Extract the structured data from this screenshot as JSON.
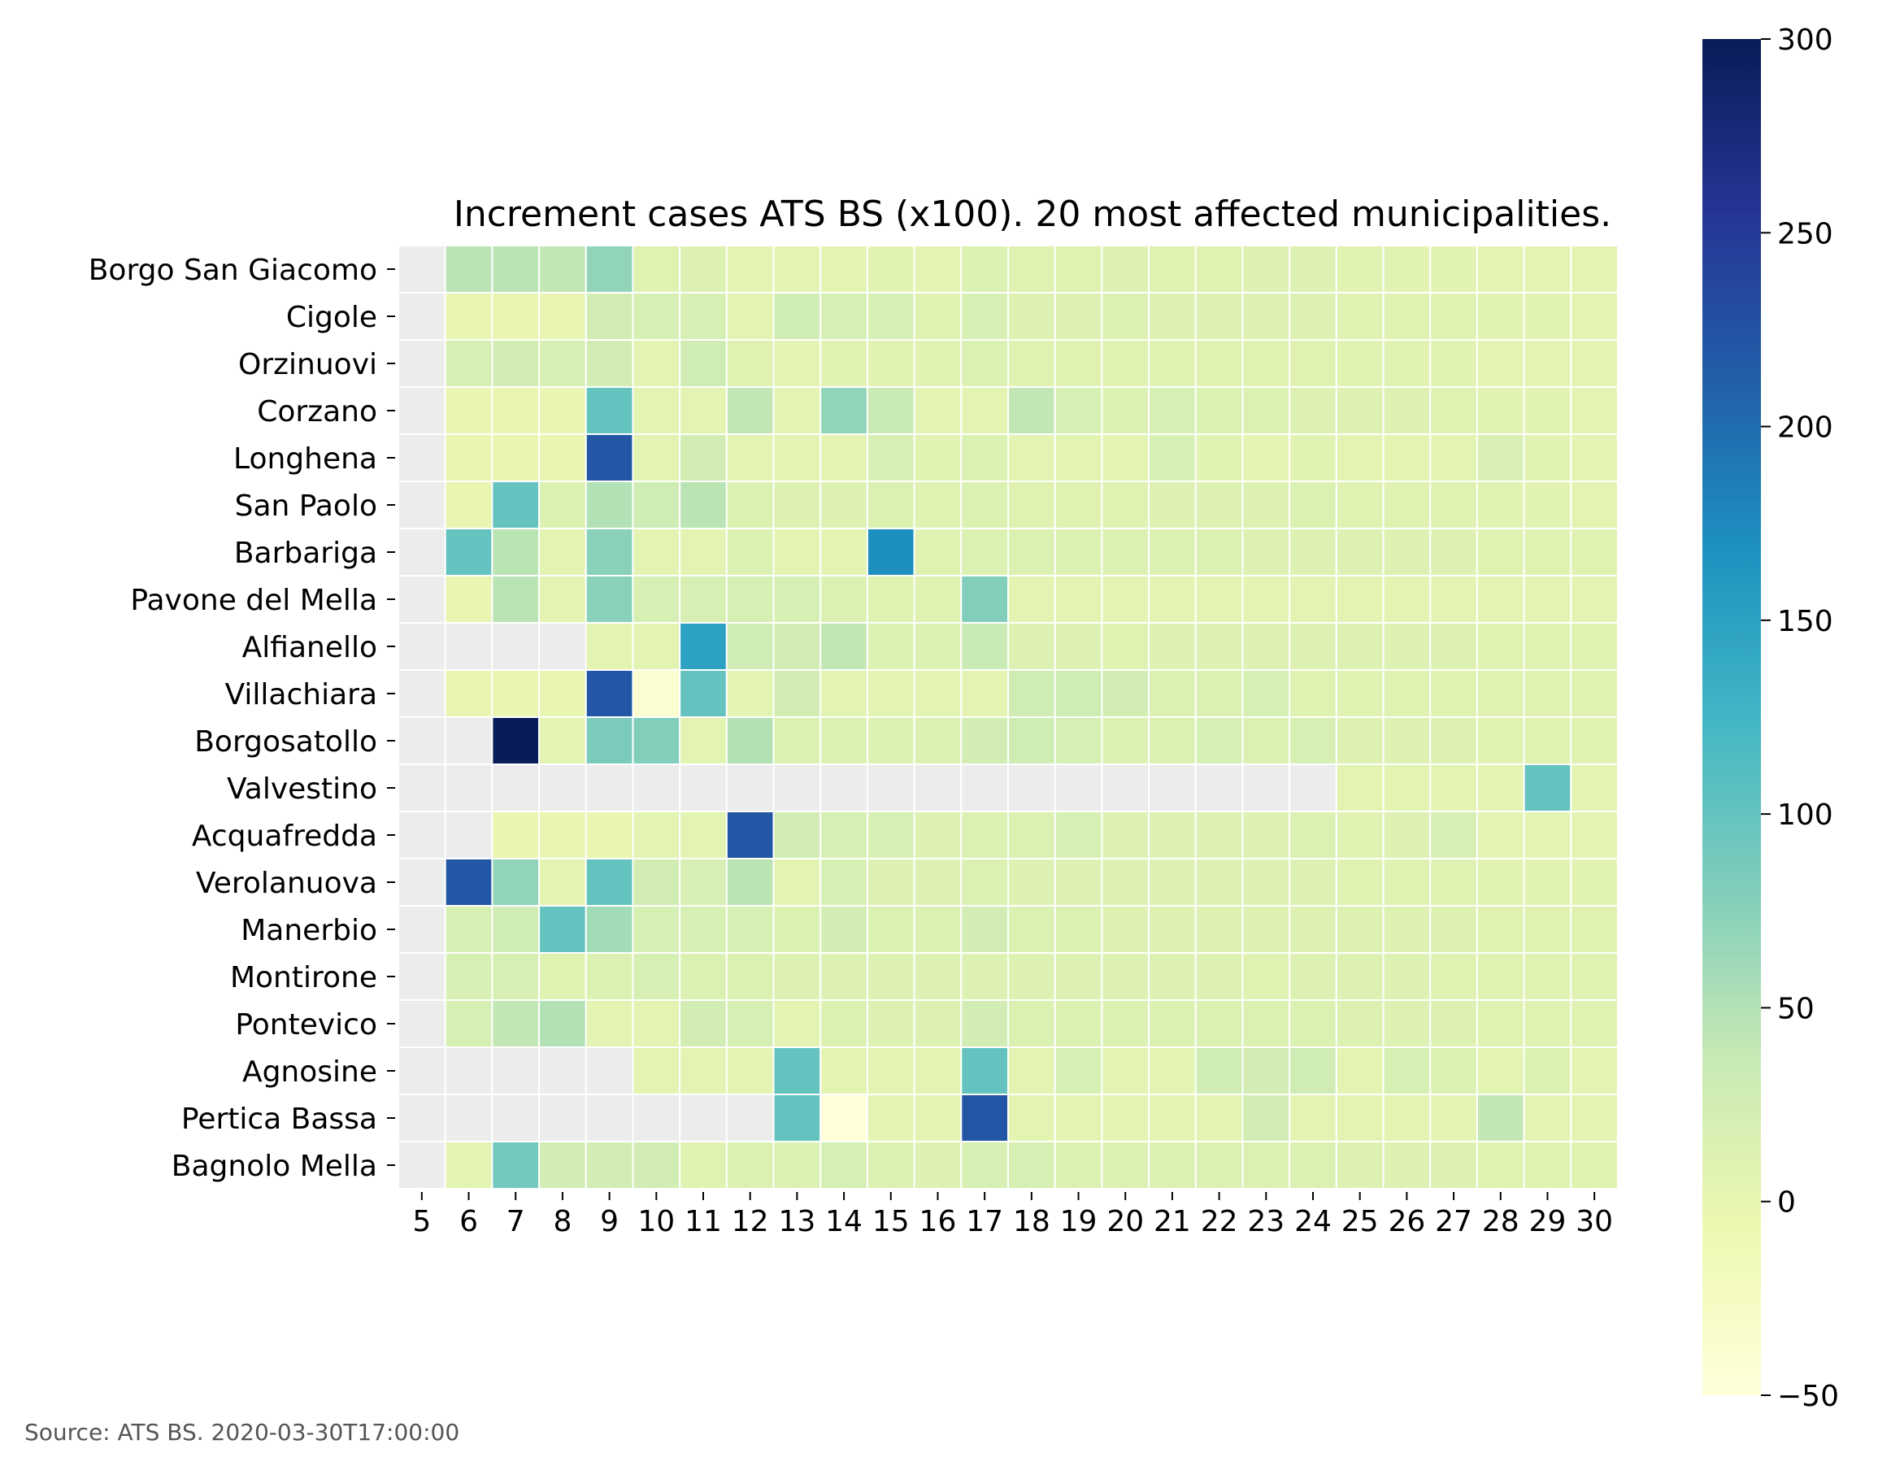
{
  "chart_data": {
    "type": "heatmap",
    "title": "Increment cases ATS BS (x100). 20 most affected municipalities.",
    "x": [
      "5",
      "6",
      "7",
      "8",
      "9",
      "10",
      "11",
      "12",
      "13",
      "14",
      "15",
      "16",
      "17",
      "18",
      "19",
      "20",
      "21",
      "22",
      "23",
      "24",
      "25",
      "26",
      "27",
      "28",
      "29",
      "30"
    ],
    "y": [
      "Borgo San Giacomo",
      "Cigole",
      "Orzinuovi",
      "Corzano",
      "Longhena",
      "San Paolo",
      "Barbariga",
      "Pavone del Mella",
      "Alfianello",
      "Villachiara",
      "Borgosatollo",
      "Valvestino",
      "Acquafredda",
      "Verolanuova",
      "Manerbio",
      "Montirone",
      "Pontevico",
      "Agnosine",
      "Pertica Bassa",
      "Bagnolo Mella"
    ],
    "values": [
      [
        null,
        45,
        45,
        40,
        70,
        10,
        12,
        5,
        5,
        5,
        8,
        5,
        15,
        10,
        10,
        12,
        10,
        10,
        12,
        12,
        8,
        8,
        8,
        5,
        5,
        5
      ],
      [
        null,
        0,
        0,
        0,
        25,
        20,
        20,
        5,
        28,
        20,
        20,
        10,
        20,
        12,
        12,
        15,
        12,
        12,
        12,
        12,
        10,
        10,
        10,
        8,
        8,
        5
      ],
      [
        null,
        20,
        25,
        20,
        25,
        5,
        30,
        10,
        5,
        8,
        8,
        8,
        15,
        10,
        10,
        10,
        10,
        10,
        10,
        10,
        8,
        8,
        8,
        5,
        5,
        5
      ],
      [
        null,
        0,
        0,
        0,
        100,
        5,
        5,
        40,
        5,
        70,
        35,
        5,
        5,
        40,
        20,
        15,
        20,
        15,
        15,
        12,
        12,
        12,
        10,
        8,
        8,
        5
      ],
      [
        null,
        0,
        0,
        0,
        220,
        5,
        25,
        5,
        5,
        5,
        20,
        8,
        15,
        5,
        5,
        5,
        20,
        8,
        5,
        8,
        5,
        5,
        5,
        18,
        8,
        5
      ],
      [
        null,
        0,
        100,
        15,
        50,
        30,
        45,
        15,
        12,
        12,
        15,
        10,
        15,
        10,
        10,
        10,
        12,
        12,
        12,
        15,
        10,
        10,
        10,
        8,
        8,
        5
      ],
      [
        null,
        100,
        45,
        5,
        75,
        5,
        5,
        15,
        5,
        5,
        170,
        10,
        15,
        15,
        15,
        15,
        15,
        15,
        12,
        12,
        12,
        12,
        12,
        10,
        10,
        10
      ],
      [
        null,
        0,
        45,
        5,
        75,
        20,
        20,
        20,
        20,
        15,
        10,
        10,
        80,
        5,
        5,
        5,
        5,
        5,
        5,
        5,
        5,
        5,
        5,
        5,
        5,
        5
      ],
      [
        null,
        null,
        null,
        null,
        5,
        5,
        150,
        30,
        25,
        40,
        15,
        15,
        35,
        12,
        12,
        10,
        12,
        12,
        12,
        12,
        12,
        12,
        12,
        10,
        10,
        10
      ],
      [
        null,
        0,
        0,
        0,
        220,
        -40,
        100,
        5,
        25,
        5,
        5,
        5,
        5,
        30,
        30,
        25,
        15,
        15,
        20,
        10,
        10,
        10,
        10,
        10,
        10,
        10
      ],
      [
        null,
        null,
        300,
        5,
        85,
        80,
        5,
        50,
        15,
        15,
        15,
        15,
        25,
        30,
        20,
        15,
        15,
        20,
        15,
        20,
        12,
        12,
        12,
        10,
        10,
        10
      ],
      [
        null,
        null,
        null,
        null,
        null,
        null,
        null,
        null,
        null,
        null,
        null,
        null,
        null,
        null,
        null,
        null,
        null,
        null,
        null,
        null,
        5,
        5,
        5,
        5,
        100,
        5
      ],
      [
        null,
        null,
        0,
        0,
        0,
        5,
        5,
        220,
        25,
        20,
        20,
        12,
        15,
        15,
        20,
        12,
        12,
        12,
        12,
        15,
        10,
        12,
        20,
        5,
        5,
        5
      ],
      [
        null,
        220,
        70,
        5,
        100,
        25,
        20,
        45,
        5,
        20,
        12,
        12,
        15,
        12,
        12,
        12,
        12,
        12,
        12,
        12,
        10,
        10,
        10,
        8,
        8,
        8
      ],
      [
        null,
        20,
        30,
        100,
        60,
        20,
        20,
        20,
        15,
        25,
        15,
        15,
        25,
        15,
        15,
        12,
        12,
        12,
        12,
        12,
        12,
        12,
        12,
        10,
        10,
        10
      ],
      [
        null,
        20,
        20,
        10,
        15,
        20,
        15,
        15,
        12,
        12,
        12,
        12,
        12,
        12,
        12,
        12,
        12,
        12,
        10,
        12,
        12,
        12,
        10,
        10,
        10,
        10
      ],
      [
        null,
        20,
        40,
        50,
        5,
        5,
        25,
        20,
        5,
        15,
        12,
        12,
        25,
        15,
        15,
        15,
        15,
        15,
        15,
        15,
        12,
        12,
        12,
        10,
        10,
        10
      ],
      [
        null,
        null,
        null,
        null,
        null,
        5,
        5,
        5,
        100,
        5,
        5,
        5,
        100,
        5,
        20,
        5,
        5,
        30,
        25,
        30,
        5,
        20,
        15,
        5,
        15,
        5
      ],
      [
        null,
        null,
        null,
        null,
        null,
        null,
        null,
        null,
        100,
        -50,
        5,
        5,
        220,
        5,
        5,
        5,
        5,
        5,
        25,
        5,
        5,
        5,
        5,
        40,
        5,
        5
      ],
      [
        null,
        5,
        90,
        25,
        25,
        25,
        10,
        15,
        15,
        20,
        15,
        12,
        20,
        20,
        15,
        15,
        15,
        15,
        15,
        15,
        12,
        12,
        12,
        10,
        10,
        10
      ]
    ],
    "missing_color": "#ececec",
    "colorbar": {
      "colormap": "YlGnBu",
      "range": [
        -50,
        300
      ],
      "ticks": [
        "300",
        "250",
        "200",
        "150",
        "100",
        "50",
        "0",
        "−50"
      ],
      "colors": [
        "#ffffd9",
        "#edf8b1",
        "#c7e9b4",
        "#7fcdbb",
        "#41b6c4",
        "#1d91c0",
        "#225ea8",
        "#253494",
        "#081d58"
      ]
    },
    "source": "Source: ATS BS. 2020-03-30T17:00:00"
  }
}
